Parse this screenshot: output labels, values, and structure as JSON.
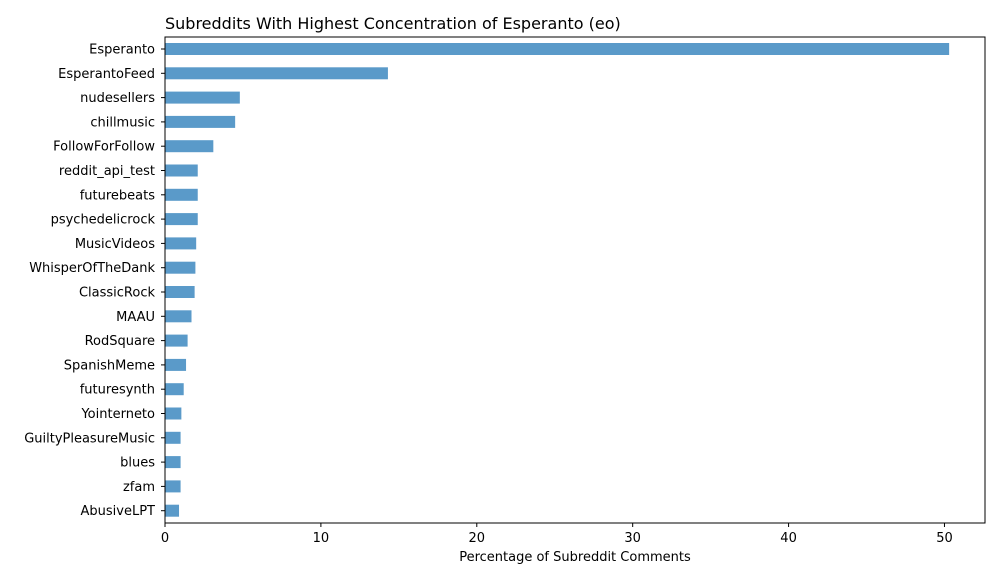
{
  "chart_data": {
    "type": "bar",
    "orientation": "horizontal",
    "title": "Subreddits With Highest Concentration of Esperanto (eo)",
    "xlabel": "Percentage of Subreddit Comments",
    "ylabel": "",
    "xlim": [
      0,
      52.6
    ],
    "xticks": [
      0,
      10,
      20,
      30,
      40,
      50
    ],
    "grid": false,
    "bar_color": "#5a9ac9",
    "categories": [
      "Esperanto",
      "EsperantoFeed",
      "nudesellers",
      "chillmusic",
      "FollowForFollow",
      "reddit_api_test",
      "futurebeats",
      "psychedelicrock",
      "MusicVideos",
      "WhisperOfTheDank",
      "ClassicRock",
      "MAAU",
      "RodSquare",
      "SpanishMeme",
      "futuresynth",
      "Yointerneto",
      "GuiltyPleasureMusic",
      "blues",
      "zfam",
      "AbusiveLPT"
    ],
    "values": [
      50.3,
      14.3,
      4.8,
      4.5,
      3.1,
      2.1,
      2.1,
      2.1,
      2.0,
      1.95,
      1.9,
      1.7,
      1.45,
      1.35,
      1.2,
      1.05,
      1.0,
      1.0,
      1.0,
      0.9
    ]
  }
}
